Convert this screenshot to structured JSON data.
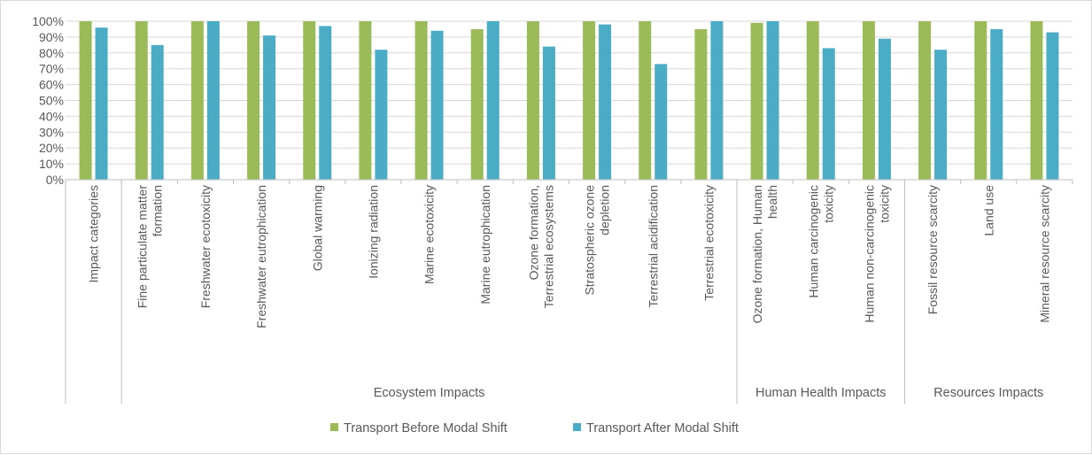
{
  "chart_data": {
    "type": "bar",
    "title": "",
    "xlabel": "",
    "ylabel": "",
    "ylim": [
      0,
      100
    ],
    "yticks": [
      "0%",
      "10%",
      "20%",
      "30%",
      "40%",
      "50%",
      "60%",
      "70%",
      "80%",
      "90%",
      "100%"
    ],
    "grid": true,
    "legend_position": "bottom",
    "categories": [
      [
        "Impact categories"
      ],
      [
        "Fine particulate matter",
        "formation"
      ],
      [
        "Freshwater ecotoxicity"
      ],
      [
        "Freshwater eutrophication"
      ],
      [
        "Global warming"
      ],
      [
        "Ionizing radiation"
      ],
      [
        "Marine ecotoxicity"
      ],
      [
        "Marine eutrophication"
      ],
      [
        "Ozone formation,",
        "Terrestrial ecosystems"
      ],
      [
        "Stratospheric ozone",
        "depletion"
      ],
      [
        "Terrestrial acidification"
      ],
      [
        "Terrestrial ecotoxicity"
      ],
      [
        "Ozone formation, Human",
        "health"
      ],
      [
        "Human carcinogenic",
        "toxicity"
      ],
      [
        "Human non-carcinogenic",
        "toxicity"
      ],
      [
        "Fossil resource scarcity"
      ],
      [
        "Land use"
      ],
      [
        "Mineral resource scarcity"
      ]
    ],
    "groups": [
      {
        "label": "",
        "start": 0,
        "end": 0
      },
      {
        "label": "Ecosystem Impacts",
        "start": 1,
        "end": 11
      },
      {
        "label": "Human Health Impacts",
        "start": 12,
        "end": 14
      },
      {
        "label": "Resources Impacts",
        "start": 15,
        "end": 17
      }
    ],
    "series": [
      {
        "name": "Transport Before Modal Shift",
        "color": "#9bbb59",
        "values": [
          100,
          100,
          100,
          100,
          100,
          100,
          100,
          95,
          100,
          100,
          100,
          95,
          99,
          100,
          100,
          100,
          100,
          100
        ]
      },
      {
        "name": "Transport After Modal Shift",
        "color": "#4bacc6",
        "values": [
          96,
          85,
          100,
          91,
          97,
          82,
          94,
          100,
          84,
          98,
          73,
          100,
          100,
          83,
          89,
          82,
          95,
          93
        ]
      }
    ]
  },
  "colors": {
    "grid": "#d9d9d9",
    "axis": "#bfbfbf",
    "text": "#595959"
  }
}
